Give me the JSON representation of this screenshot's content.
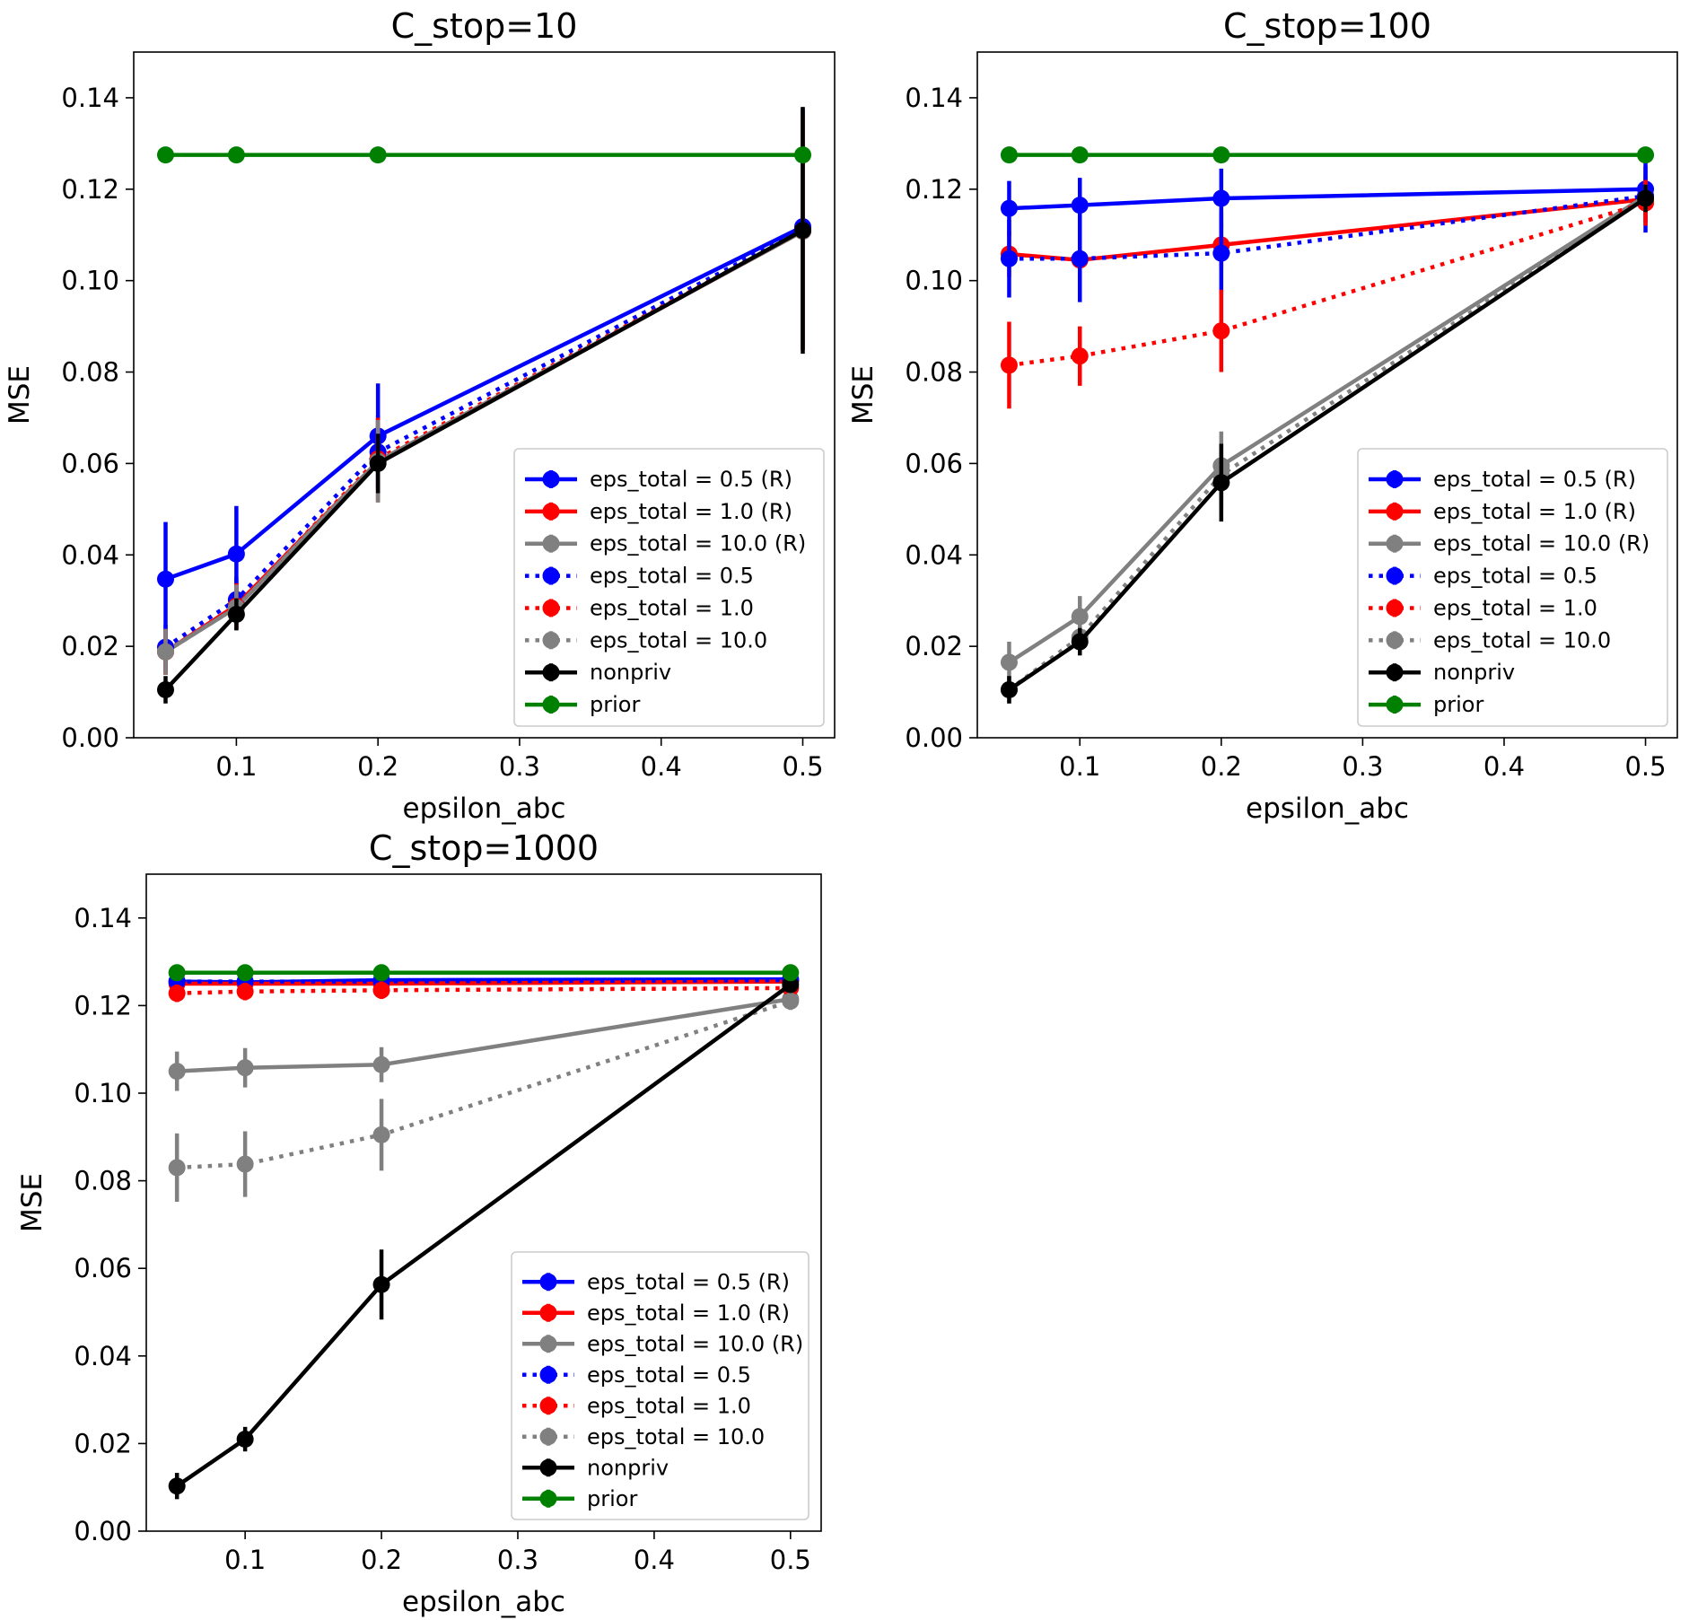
{
  "figure": {
    "background": "#ffffff"
  },
  "chart_data": [
    {
      "type": "line",
      "title": "C_stop=10",
      "xlabel": "epsilon_abc",
      "ylabel": "MSE",
      "x": [
        0.05,
        0.1,
        0.2,
        0.5
      ],
      "xlim": [
        0.0275,
        0.5225
      ],
      "ylim": [
        0.0,
        0.15
      ],
      "xticks": [
        0.1,
        0.2,
        0.3,
        0.4,
        0.5
      ],
      "xtick_labels": [
        "0.1",
        "0.2",
        "0.3",
        "0.4",
        "0.5"
      ],
      "yticks": [
        0.0,
        0.02,
        0.04,
        0.06,
        0.08,
        0.1,
        0.12,
        0.14
      ],
      "ytick_labels": [
        "0.00",
        "0.02",
        "0.04",
        "0.06",
        "0.08",
        "0.10",
        "0.12",
        "0.14"
      ],
      "grid": false,
      "legend_position": "lower right",
      "series": [
        {
          "name": "eps_total = 0.5 (R)",
          "color": "#0000ff",
          "style": "solid",
          "values": [
            0.0347,
            0.0402,
            0.066,
            0.1118
          ],
          "errors": [
            0.0125,
            0.0105,
            0.0115,
            0.026
          ]
        },
        {
          "name": "eps_total = 1.0 (R)",
          "color": "#ff0000",
          "style": "solid",
          "values": [
            0.0188,
            0.029,
            0.0605,
            0.1108
          ],
          "errors": [
            0.005,
            0.005,
            0.009,
            0.026
          ]
        },
        {
          "name": "eps_total = 10.0 (R)",
          "color": "#808080",
          "style": "solid",
          "values": [
            0.0188,
            0.0285,
            0.0605,
            0.1108
          ],
          "errors": [
            0.005,
            0.005,
            0.009,
            0.026
          ]
        },
        {
          "name": "eps_total = 0.5",
          "color": "#0000ff",
          "style": "dotted",
          "values": [
            0.0198,
            0.0302,
            0.0625,
            0.1112
          ],
          "errors": [
            0.005,
            0.005,
            0.008,
            0.026
          ]
        },
        {
          "name": "eps_total = 1.0",
          "color": "#ff0000",
          "style": "dotted",
          "values": [
            0.0188,
            0.0288,
            0.061,
            0.1108
          ],
          "errors": [
            0.005,
            0.005,
            0.009,
            0.026
          ]
        },
        {
          "name": "eps_total = 10.0",
          "color": "#808080",
          "style": "dotted",
          "values": [
            0.0188,
            0.0285,
            0.0605,
            0.1108
          ],
          "errors": [
            0.005,
            0.005,
            0.009,
            0.026
          ]
        },
        {
          "name": "nonpriv",
          "color": "#000000",
          "style": "solid",
          "values": [
            0.0105,
            0.027,
            0.06,
            0.111
          ],
          "errors": [
            0.003,
            0.0035,
            0.0065,
            0.027
          ]
        },
        {
          "name": "prior",
          "color": "#008000",
          "style": "solid",
          "values": [
            0.1275,
            0.1275,
            0.1275,
            0.1275
          ],
          "errors": [
            0,
            0,
            0,
            0
          ]
        }
      ]
    },
    {
      "type": "line",
      "title": "C_stop=100",
      "xlabel": "epsilon_abc",
      "ylabel": "MSE",
      "x": [
        0.05,
        0.1,
        0.2,
        0.5
      ],
      "xlim": [
        0.0275,
        0.5225
      ],
      "ylim": [
        0.0,
        0.15
      ],
      "xticks": [
        0.1,
        0.2,
        0.3,
        0.4,
        0.5
      ],
      "xtick_labels": [
        "0.1",
        "0.2",
        "0.3",
        "0.4",
        "0.5"
      ],
      "yticks": [
        0.0,
        0.02,
        0.04,
        0.06,
        0.08,
        0.1,
        0.12,
        0.14
      ],
      "ytick_labels": [
        "0.00",
        "0.02",
        "0.04",
        "0.06",
        "0.08",
        "0.10",
        "0.12",
        "0.14"
      ],
      "grid": false,
      "legend_position": "lower right",
      "series": [
        {
          "name": "eps_total = 0.5 (R)",
          "color": "#0000ff",
          "style": "solid",
          "values": [
            0.1158,
            0.1165,
            0.118,
            0.12
          ],
          "errors": [
            0.006,
            0.006,
            0.0065,
            0.005
          ]
        },
        {
          "name": "eps_total = 1.0 (R)",
          "color": "#ff0000",
          "style": "solid",
          "values": [
            0.1058,
            0.1045,
            0.1078,
            0.1178
          ],
          "errors": [
            0.005,
            0.005,
            0.005,
            0.005
          ]
        },
        {
          "name": "eps_total = 10.0 (R)",
          "color": "#808080",
          "style": "solid",
          "values": [
            0.0165,
            0.0265,
            0.0595,
            0.1185
          ],
          "errors": [
            0.0045,
            0.0045,
            0.0075,
            0.003
          ]
        },
        {
          "name": "eps_total = 0.5",
          "color": "#0000ff",
          "style": "dotted",
          "values": [
            0.1048,
            0.1048,
            0.106,
            0.1185
          ],
          "errors": [
            0.0085,
            0.0095,
            0.009,
            0.008
          ]
        },
        {
          "name": "eps_total = 1.0",
          "color": "#ff0000",
          "style": "dotted",
          "values": [
            0.0815,
            0.0835,
            0.089,
            0.117
          ],
          "errors": [
            0.0095,
            0.0065,
            0.009,
            0.005
          ]
        },
        {
          "name": "eps_total = 10.0",
          "color": "#808080",
          "style": "dotted",
          "values": [
            0.0105,
            0.022,
            0.0575,
            0.118
          ],
          "errors": [
            0.003,
            0.0035,
            0.007,
            0.003
          ]
        },
        {
          "name": "nonpriv",
          "color": "#000000",
          "style": "solid",
          "values": [
            0.0105,
            0.021,
            0.0558,
            0.118
          ],
          "errors": [
            0.003,
            0.003,
            0.0085,
            0.003
          ]
        },
        {
          "name": "prior",
          "color": "#008000",
          "style": "solid",
          "values": [
            0.1275,
            0.1275,
            0.1275,
            0.1275
          ],
          "errors": [
            0,
            0,
            0,
            0
          ]
        }
      ]
    },
    {
      "type": "line",
      "title": "C_stop=1000",
      "xlabel": "epsilon_abc",
      "ylabel": "MSE",
      "x": [
        0.05,
        0.1,
        0.2,
        0.5
      ],
      "xlim": [
        0.0275,
        0.5225
      ],
      "ylim": [
        0.0,
        0.15
      ],
      "xticks": [
        0.1,
        0.2,
        0.3,
        0.4,
        0.5
      ],
      "xtick_labels": [
        "0.1",
        "0.2",
        "0.3",
        "0.4",
        "0.5"
      ],
      "yticks": [
        0.0,
        0.02,
        0.04,
        0.06,
        0.08,
        0.1,
        0.12,
        0.14
      ],
      "ytick_labels": [
        "0.00",
        "0.02",
        "0.04",
        "0.06",
        "0.08",
        "0.10",
        "0.12",
        "0.14"
      ],
      "grid": false,
      "legend_position": "lower right",
      "series": [
        {
          "name": "eps_total = 0.5 (R)",
          "color": "#0000ff",
          "style": "solid",
          "values": [
            0.1255,
            0.1253,
            0.1258,
            0.126
          ],
          "errors": [
            0.001,
            0.001,
            0.001,
            0.001
          ]
        },
        {
          "name": "eps_total = 1.0 (R)",
          "color": "#ff0000",
          "style": "solid",
          "values": [
            0.125,
            0.125,
            0.125,
            0.1255
          ],
          "errors": [
            0.001,
            0.001,
            0.001,
            0.001
          ]
        },
        {
          "name": "eps_total = 10.0 (R)",
          "color": "#808080",
          "style": "solid",
          "values": [
            0.105,
            0.1058,
            0.1065,
            0.1215
          ],
          "errors": [
            0.0045,
            0.0045,
            0.004,
            0.002
          ]
        },
        {
          "name": "eps_total = 0.5",
          "color": "#0000ff",
          "style": "dotted",
          "values": [
            0.1255,
            0.1255,
            0.1255,
            0.1258
          ],
          "errors": [
            0.0008,
            0.0008,
            0.0008,
            0.0008
          ]
        },
        {
          "name": "eps_total = 1.0",
          "color": "#ff0000",
          "style": "dotted",
          "values": [
            0.1228,
            0.1232,
            0.1235,
            0.124
          ],
          "errors": [
            0.002,
            0.002,
            0.002,
            0.001
          ]
        },
        {
          "name": "eps_total = 10.0",
          "color": "#808080",
          "style": "dotted",
          "values": [
            0.083,
            0.0838,
            0.0905,
            0.121
          ],
          "errors": [
            0.0078,
            0.0075,
            0.0082,
            0.002
          ]
        },
        {
          "name": "nonpriv",
          "color": "#000000",
          "style": "solid",
          "values": [
            0.0103,
            0.021,
            0.0563,
            0.1248
          ],
          "errors": [
            0.003,
            0.0028,
            0.008,
            0.0012
          ]
        },
        {
          "name": "prior",
          "color": "#008000",
          "style": "solid",
          "values": [
            0.1275,
            0.1275,
            0.1275,
            0.1275
          ],
          "errors": [
            0,
            0,
            0,
            0
          ]
        }
      ]
    }
  ]
}
